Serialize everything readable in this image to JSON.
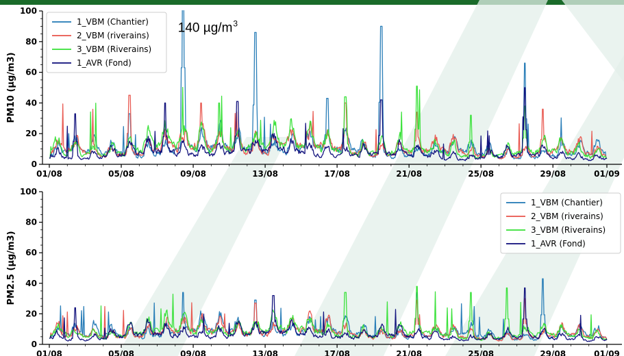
{
  "colors": {
    "top_bar": "#1a6b2a",
    "background": "#ffffff",
    "watermark": "#e3efe9"
  },
  "chart_data": [
    {
      "type": "line",
      "ylabel": "PM10 (µg/m3)",
      "ylim": [
        0,
        100
      ],
      "yticks": [
        0,
        20,
        40,
        60,
        80,
        100
      ],
      "xlim": [
        "01/08",
        "01/09"
      ],
      "xticks": [
        "01/08",
        "05/08",
        "09/08",
        "13/08",
        "17/08",
        "21/08",
        "25/08",
        "29/08",
        "01/09"
      ],
      "legend": "top-left",
      "annotation": {
        "text": "140 µg/m",
        "superscript": "3",
        "x": "08/08",
        "y": 98
      },
      "series": [
        {
          "name": "1_VBM (Chantier)",
          "color": "#1f77b4",
          "baseline": 14,
          "peaks": [
            [
              "08/08",
              140
            ],
            [
              "12/08",
              86
            ],
            [
              "19/08",
              90
            ],
            [
              "16/08",
              43
            ],
            [
              "27/08",
              66
            ],
            [
              "05/08",
              33
            ]
          ]
        },
        {
          "name": "2_VBM (riverains)",
          "color": "#e8524a",
          "baseline": 15,
          "peaks": [
            [
              "05/08",
              45
            ],
            [
              "09/08",
              40
            ],
            [
              "17/08",
              40
            ],
            [
              "21/08",
              34
            ],
            [
              "28/08",
              36
            ]
          ]
        },
        {
          "name": "3_VBM (Riverains)",
          "color": "#33e033",
          "baseline": 16,
          "peaks": [
            [
              "10/08",
              40
            ],
            [
              "17/08",
              44
            ],
            [
              "21/08",
              51
            ],
            [
              "24/08",
              32
            ],
            [
              "27/08",
              38
            ]
          ]
        },
        {
          "name": "1_AVR (Fond)",
          "color": "#0a0a78",
          "baseline": 11,
          "peaks": [
            [
              "07/08",
              40
            ],
            [
              "11/08",
              41
            ],
            [
              "19/08",
              42
            ],
            [
              "27/08",
              50
            ],
            [
              "01/09",
              30
            ],
            [
              "02/08",
              33
            ]
          ]
        }
      ]
    },
    {
      "type": "line",
      "ylabel": "PM2.5 (µg/m3)",
      "ylim": [
        0,
        100
      ],
      "yticks": [
        0,
        20,
        40,
        60,
        80,
        100
      ],
      "xlim": [
        "01/08",
        "01/09"
      ],
      "xticks": [
        "01/08",
        "05/08",
        "09/08",
        "13/08",
        "17/08",
        "21/08",
        "25/08",
        "29/08",
        "01/09"
      ],
      "legend": "top-right",
      "series": [
        {
          "name": "1_VBM (Chantier)",
          "color": "#1f77b4",
          "baseline": 11,
          "peaks": [
            [
              "08/08",
              34
            ],
            [
              "12/08",
              29
            ],
            [
              "28/08",
              43
            ],
            [
              "21/08",
              34
            ]
          ]
        },
        {
          "name": "2_VBM (riverains)",
          "color": "#e8524a",
          "baseline": 11,
          "peaks": [
            [
              "12/08",
              27
            ],
            [
              "21/08",
              29
            ],
            [
              "27/08",
              30
            ]
          ]
        },
        {
          "name": "3_VBM (Riverains)",
          "color": "#33e033",
          "baseline": 12,
          "peaks": [
            [
              "17/08",
              34
            ],
            [
              "21/08",
              38
            ],
            [
              "24/08",
              34
            ],
            [
              "26/08",
              37
            ]
          ]
        },
        {
          "name": "1_AVR (Fond)",
          "color": "#0a0a78",
          "baseline": 9,
          "peaks": [
            [
              "02/08",
              24
            ],
            [
              "13/08",
              32
            ],
            [
              "27/08",
              37
            ],
            [
              "01/09",
              22
            ]
          ]
        }
      ]
    }
  ]
}
